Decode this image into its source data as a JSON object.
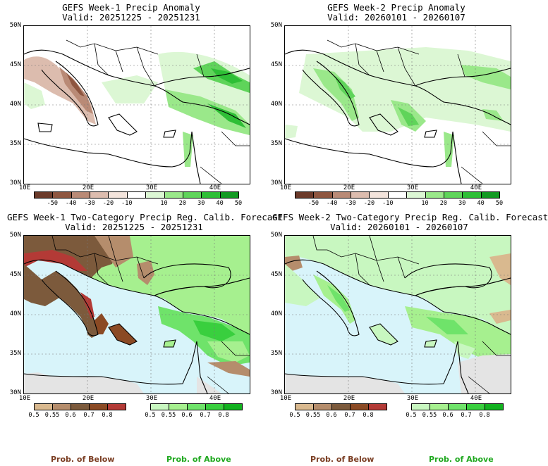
{
  "panels": [
    {
      "title": "GEFS Week-1 Precip Anomaly",
      "valid": "Valid: 20251225 - 20251231",
      "kind": "anomaly",
      "lat_labels": [
        "50N",
        "45N",
        "40N",
        "35N",
        "30N"
      ],
      "lon_labels": [
        "10E",
        "20E",
        "30E",
        "40E"
      ],
      "colorbar_ticks": [
        "-50",
        "-40",
        "-30",
        "-20",
        "-10",
        "10",
        "20",
        "30",
        "40",
        "50"
      ]
    },
    {
      "title": "GEFS Week-2 Precip Anomaly",
      "valid": "Valid: 20260101 - 20260107",
      "kind": "anomaly",
      "lat_labels": [
        "50N",
        "45N",
        "40N",
        "35N",
        "30N"
      ],
      "lon_labels": [
        "10E",
        "20E",
        "30E",
        "40E"
      ],
      "colorbar_ticks": [
        "-50",
        "-40",
        "-30",
        "-20",
        "-10",
        "10",
        "20",
        "30",
        "40",
        "50"
      ]
    },
    {
      "title": "GEFS Week-1 Two-Category Precip Reg. Calib. Forecast",
      "valid": "Valid: 20251225 - 20251231",
      "kind": "probability",
      "lat_labels": [
        "50N",
        "45N",
        "40N",
        "35N",
        "30N"
      ],
      "lon_labels": [
        "10E",
        "20E",
        "30E",
        "40E"
      ],
      "below_ticks": [
        "0.5",
        "0.55",
        "0.6",
        "0.7",
        "0.8"
      ],
      "above_ticks": [
        "0.5",
        "0.55",
        "0.6",
        "0.7",
        "0.8"
      ]
    },
    {
      "title": "GEFS Week-2 Two-Category Precip Reg. Calib. Forecast",
      "valid": "Valid: 20260101 - 20260107",
      "kind": "probability",
      "lat_labels": [
        "50N",
        "45N",
        "40N",
        "35N",
        "30N"
      ],
      "lon_labels": [
        "10E",
        "20E",
        "30E",
        "40E"
      ],
      "below_ticks": [
        "0.5",
        "0.55",
        "0.6",
        "0.7",
        "0.8"
      ],
      "above_ticks": [
        "0.5",
        "0.55",
        "0.6",
        "0.7",
        "0.8"
      ]
    }
  ],
  "captions": {
    "left_below": "Prob. of Below",
    "left_above": "Prob. of Above",
    "right_below": "Prob. of Below",
    "right_above": "Prob. of Above"
  },
  "colors": {
    "anomaly_dry": [
      "#6b3a2a",
      "#8e5640",
      "#b98a76",
      "#dcbcae",
      "#f3e4dc"
    ],
    "anomaly_wet": [
      "#dcf7d4",
      "#9ae88a",
      "#5fd45a",
      "#2ebf36",
      "#129a22"
    ],
    "prob_below": [
      "#d9b98f",
      "#b58d6c",
      "#7c5a3c",
      "#8b4a24",
      "#b33a36"
    ],
    "prob_above": [
      "#c8f7c0",
      "#a6f08f",
      "#6fe36a",
      "#39cf3e",
      "#12b21f"
    ],
    "sea": "#d8f4fa",
    "land_nodata": "#e4e4e4"
  }
}
